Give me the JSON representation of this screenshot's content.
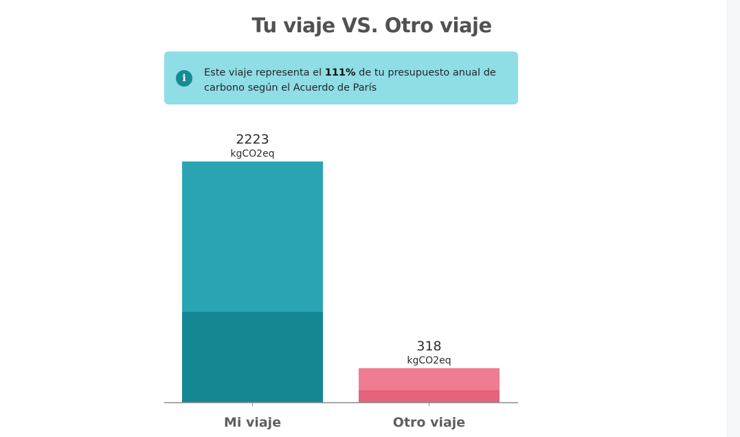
{
  "title": "Tu viaje VS. Otro viaje",
  "info": {
    "icon": "info-icon",
    "text_before": "Este viaje representa el ",
    "highlight": "111%",
    "text_after": " de tu presupuesto anual de carbono según el Acuerdo de París"
  },
  "colors": {
    "accent": "#8fdde5",
    "bar1_top": "#2aa4b3",
    "bar1_bottom": "#158793",
    "bar2_top": "#ee7d92",
    "bar2_bottom": "#e4627c"
  },
  "chart_data": {
    "type": "bar",
    "stacked": true,
    "categories": [
      "Mi viaje",
      "Otro viaje"
    ],
    "values": [
      2223,
      318
    ],
    "unit": "kgCO2eq",
    "segments": [
      {
        "lower": 840,
        "upper": 1383
      },
      {
        "lower": 118,
        "upper": 200
      }
    ],
    "ylim": [
      0,
      2223
    ],
    "grid": false,
    "legend": "none"
  }
}
